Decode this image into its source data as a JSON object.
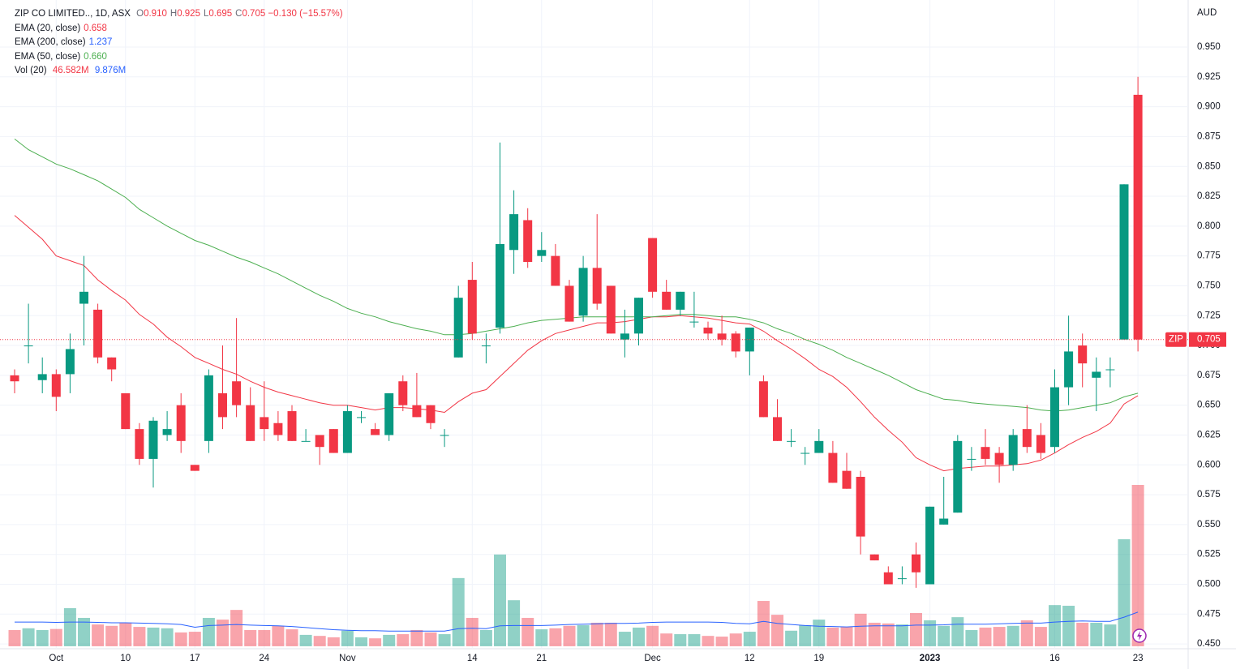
{
  "header": {
    "symbol": "ZIP CO LIMITED.., 1D, ASX",
    "ohlc": [
      {
        "key": "O",
        "value": "0.910"
      },
      {
        "key": "H",
        "value": "0.925"
      },
      {
        "key": "L",
        "value": "0.695"
      },
      {
        "key": "C",
        "value": "0.705"
      }
    ],
    "change": "−0.130 (−15.57%)",
    "currency": "AUD",
    "price_tag": "ZIP"
  },
  "volume_legend": {
    "name": "Vol (20)",
    "value_label": "46.582M",
    "ma_label": "9.876M"
  },
  "chart_data": {
    "type": "candlestick",
    "categories": [
      null,
      null,
      null,
      "Oct",
      null,
      null,
      null,
      null,
      "10",
      null,
      null,
      null,
      null,
      "17",
      null,
      null,
      null,
      null,
      "24",
      null,
      null,
      null,
      null,
      null,
      "Nov",
      null,
      null,
      null,
      null,
      null,
      null,
      null,
      null,
      "14",
      null,
      null,
      null,
      null,
      "21",
      null,
      null,
      null,
      null,
      null,
      null,
      null,
      "Dec",
      null,
      null,
      null,
      null,
      null,
      null,
      "12",
      null,
      null,
      null,
      null,
      "19",
      null,
      null,
      null,
      null,
      null,
      null,
      null,
      "2023",
      null,
      null,
      null,
      null,
      null,
      null,
      null,
      null,
      "16",
      null,
      null,
      null,
      null,
      null,
      "23"
    ],
    "open": [
      0.675,
      0.7,
      0.671,
      0.676,
      0.676,
      0.735,
      0.73,
      0.69,
      0.66,
      0.63,
      0.605,
      0.625,
      0.65,
      0.6,
      0.62,
      0.66,
      0.67,
      0.65,
      0.64,
      0.635,
      0.645,
      0.62,
      0.625,
      0.63,
      0.61,
      0.64,
      0.63,
      0.625,
      0.67,
      0.65,
      0.65,
      0.625,
      0.69,
      0.755,
      0.7,
      0.715,
      0.78,
      0.805,
      0.775,
      0.775,
      0.75,
      0.725,
      0.765,
      0.75,
      0.705,
      0.71,
      0.79,
      0.745,
      0.73,
      0.72,
      0.715,
      0.71,
      0.71,
      0.695,
      0.67,
      0.64,
      0.62,
      0.61,
      0.61,
      0.61,
      0.595,
      0.59,
      0.525,
      0.51,
      0.505,
      0.525,
      0.5,
      0.55,
      0.56,
      0.605,
      0.615,
      0.61,
      0.6,
      0.63,
      0.625,
      0.615,
      0.665,
      0.7,
      0.673,
      0.68,
      0.705,
      0.91
    ],
    "high": [
      0.68,
      0.735,
      0.69,
      0.68,
      0.71,
      0.775,
      0.735,
      0.69,
      0.66,
      0.635,
      0.64,
      0.645,
      0.66,
      0.6,
      0.68,
      0.7,
      0.723,
      0.665,
      0.67,
      0.645,
      0.65,
      0.63,
      0.625,
      0.63,
      0.65,
      0.645,
      0.635,
      0.66,
      0.675,
      0.677,
      0.65,
      0.63,
      0.75,
      0.77,
      0.71,
      0.87,
      0.83,
      0.815,
      0.795,
      0.785,
      0.755,
      0.775,
      0.81,
      0.75,
      0.73,
      0.74,
      0.79,
      0.755,
      0.745,
      0.745,
      0.72,
      0.725,
      0.712,
      0.715,
      0.675,
      0.655,
      0.63,
      0.615,
      0.63,
      0.62,
      0.61,
      0.595,
      0.525,
      0.515,
      0.515,
      0.535,
      0.565,
      0.59,
      0.625,
      0.615,
      0.63,
      0.615,
      0.63,
      0.65,
      0.635,
      0.68,
      0.725,
      0.71,
      0.69,
      0.69,
      0.835,
      0.925
    ],
    "low": [
      0.66,
      0.685,
      0.66,
      0.645,
      0.66,
      0.7,
      0.685,
      0.67,
      0.63,
      0.6,
      0.581,
      0.62,
      0.61,
      0.595,
      0.61,
      0.63,
      0.64,
      0.62,
      0.62,
      0.62,
      0.62,
      0.62,
      0.6,
      0.61,
      0.61,
      0.635,
      0.625,
      0.62,
      0.645,
      0.64,
      0.63,
      0.615,
      0.69,
      0.705,
      0.685,
      0.71,
      0.76,
      0.765,
      0.77,
      0.75,
      0.72,
      0.72,
      0.73,
      0.71,
      0.69,
      0.7,
      0.74,
      0.73,
      0.725,
      0.715,
      0.705,
      0.7,
      0.69,
      0.675,
      0.64,
      0.62,
      0.615,
      0.6,
      0.61,
      0.585,
      0.58,
      0.525,
      0.52,
      0.5,
      0.5,
      0.497,
      0.5,
      0.55,
      0.56,
      0.595,
      0.6,
      0.585,
      0.595,
      0.61,
      0.605,
      0.61,
      0.65,
      0.665,
      0.645,
      0.665,
      0.705,
      0.695
    ],
    "close": [
      0.67,
      0.7,
      0.676,
      0.657,
      0.697,
      0.745,
      0.69,
      0.68,
      0.63,
      0.605,
      0.637,
      0.63,
      0.62,
      0.595,
      0.675,
      0.64,
      0.65,
      0.62,
      0.63,
      0.625,
      0.62,
      0.62,
      0.615,
      0.61,
      0.645,
      0.64,
      0.625,
      0.66,
      0.65,
      0.64,
      0.635,
      0.625,
      0.74,
      0.71,
      0.7,
      0.785,
      0.81,
      0.77,
      0.78,
      0.75,
      0.72,
      0.765,
      0.735,
      0.71,
      0.71,
      0.74,
      0.745,
      0.73,
      0.745,
      0.72,
      0.71,
      0.705,
      0.695,
      0.715,
      0.64,
      0.62,
      0.62,
      0.61,
      0.62,
      0.585,
      0.58,
      0.54,
      0.52,
      0.5,
      0.505,
      0.51,
      0.565,
      0.555,
      0.62,
      0.605,
      0.605,
      0.6,
      0.625,
      0.615,
      0.61,
      0.665,
      0.695,
      0.685,
      0.678,
      0.68,
      0.835,
      0.705
    ],
    "volume": [
      4.7,
      5.2,
      4.7,
      5.0,
      11.0,
      8.2,
      6.3,
      5.9,
      6.8,
      5.6,
      5.4,
      5.2,
      4.0,
      4.2,
      8.2,
      7.7,
      10.5,
      4.7,
      4.7,
      5.9,
      4.9,
      3.3,
      3.0,
      2.6,
      4.5,
      2.6,
      2.3,
      3.3,
      3.5,
      4.7,
      4.0,
      3.5,
      19.7,
      8.2,
      4.7,
      26.5,
      13.3,
      8.2,
      4.9,
      5.2,
      5.9,
      6.1,
      6.8,
      6.8,
      4.2,
      5.4,
      5.9,
      3.7,
      3.5,
      3.5,
      3.0,
      2.8,
      3.7,
      4.2,
      13.1,
      9.1,
      4.5,
      6.1,
      7.7,
      5.4,
      5.6,
      9.4,
      6.8,
      6.6,
      6.3,
      9.6,
      7.5,
      5.9,
      8.4,
      4.7,
      5.4,
      5.6,
      5.9,
      7.5,
      5.6,
      11.9,
      11.7,
      6.8,
      6.8,
      6.3,
      30.9,
      46.582
    ],
    "volume_ma": {
      "color": "#2962ff",
      "values": [
        7.0,
        7.0,
        7.0,
        6.9,
        7.0,
        7.0,
        6.9,
        6.8,
        6.8,
        6.7,
        6.6,
        6.5,
        6.3,
        5.5,
        6.0,
        6.1,
        6.3,
        6.1,
        6.0,
        5.9,
        5.7,
        5.4,
        5.1,
        4.8,
        4.6,
        4.5,
        4.5,
        4.4,
        4.4,
        4.4,
        4.4,
        4.4,
        5.1,
        5.2,
        5.1,
        5.9,
        6.0,
        6.0,
        6.0,
        6.1,
        6.3,
        6.4,
        6.5,
        6.6,
        6.6,
        6.7,
        6.9,
        7.0,
        7.0,
        7.0,
        7.0,
        6.9,
        6.6,
        6.5,
        7.2,
        6.6,
        6.3,
        6.0,
        5.8,
        5.7,
        5.6,
        5.8,
        5.9,
        5.9,
        5.9,
        6.1,
        6.1,
        6.2,
        6.4,
        6.4,
        6.4,
        6.5,
        6.6,
        6.7,
        6.7,
        7.0,
        7.2,
        7.3,
        7.2,
        7.2,
        8.4,
        9.876
      ]
    },
    "indicators": [
      {
        "name": "EMA (20, close)",
        "value_label": "0.658",
        "color": "#f23645",
        "values": [
          0.809,
          0.799,
          0.789,
          0.775,
          0.771,
          0.767,
          0.755,
          0.746,
          0.738,
          0.726,
          0.718,
          0.707,
          0.699,
          0.69,
          0.685,
          0.68,
          0.676,
          0.67,
          0.665,
          0.661,
          0.658,
          0.655,
          0.652,
          0.65,
          0.65,
          0.648,
          0.646,
          0.648,
          0.648,
          0.647,
          0.646,
          0.644,
          0.653,
          0.66,
          0.663,
          0.674,
          0.685,
          0.696,
          0.704,
          0.71,
          0.713,
          0.716,
          0.719,
          0.719,
          0.72,
          0.722,
          0.724,
          0.724,
          0.725,
          0.724,
          0.723,
          0.721,
          0.719,
          0.718,
          0.712,
          0.704,
          0.697,
          0.689,
          0.68,
          0.674,
          0.665,
          0.653,
          0.64,
          0.629,
          0.619,
          0.606,
          0.6,
          0.595,
          0.597,
          0.598,
          0.599,
          0.599,
          0.6,
          0.601,
          0.604,
          0.61,
          0.617,
          0.623,
          0.628,
          0.635,
          0.651,
          0.658
        ]
      },
      {
        "name": "EMA (200, close)",
        "value_label": "1.237",
        "color": "#2962ff"
      },
      {
        "name": "EMA (50, close)",
        "value_label": "0.660",
        "color": "#4caf50",
        "values": [
          0.873,
          0.864,
          0.858,
          0.852,
          0.848,
          0.843,
          0.838,
          0.831,
          0.824,
          0.814,
          0.807,
          0.8,
          0.794,
          0.788,
          0.784,
          0.779,
          0.774,
          0.77,
          0.765,
          0.76,
          0.754,
          0.748,
          0.742,
          0.737,
          0.731,
          0.727,
          0.724,
          0.72,
          0.717,
          0.714,
          0.712,
          0.709,
          0.709,
          0.71,
          0.712,
          0.714,
          0.716,
          0.719,
          0.721,
          0.722,
          0.723,
          0.724,
          0.724,
          0.724,
          0.724,
          0.724,
          0.724,
          0.725,
          0.726,
          0.726,
          0.725,
          0.724,
          0.724,
          0.722,
          0.719,
          0.714,
          0.71,
          0.705,
          0.701,
          0.696,
          0.69,
          0.685,
          0.68,
          0.675,
          0.669,
          0.663,
          0.659,
          0.655,
          0.654,
          0.652,
          0.651,
          0.65,
          0.649,
          0.648,
          0.646,
          0.645,
          0.646,
          0.648,
          0.65,
          0.652,
          0.657,
          0.66
        ]
      }
    ],
    "up_color": "#089981",
    "down_color": "#f23645",
    "ylim": [
      0.446,
      0.9894
    ],
    "yticks": [
      {
        "value": 0.45,
        "label": "0.450"
      },
      {
        "value": 0.475,
        "label": "0.475"
      },
      {
        "value": 0.5,
        "label": "0.500"
      },
      {
        "value": 0.525,
        "label": "0.525"
      },
      {
        "value": 0.55,
        "label": "0.550"
      },
      {
        "value": 0.575,
        "label": "0.575"
      },
      {
        "value": 0.6,
        "label": "0.600"
      },
      {
        "value": 0.625,
        "label": "0.625"
      },
      {
        "value": 0.65,
        "label": "0.650"
      },
      {
        "value": 0.675,
        "label": "0.675"
      },
      {
        "value": 0.7,
        "label": "0.700"
      },
      {
        "value": 0.725,
        "label": "0.725"
      },
      {
        "value": 0.75,
        "label": "0.750"
      },
      {
        "value": 0.775,
        "label": "0.775"
      },
      {
        "value": 0.8,
        "label": "0.800"
      },
      {
        "value": 0.825,
        "label": "0.825"
      },
      {
        "value": 0.85,
        "label": "0.850"
      },
      {
        "value": 0.875,
        "label": "0.875"
      },
      {
        "value": 0.9,
        "label": "0.900"
      },
      {
        "value": 0.925,
        "label": "0.925"
      },
      {
        "value": 0.95,
        "label": "0.950"
      }
    ],
    "grid": true
  }
}
